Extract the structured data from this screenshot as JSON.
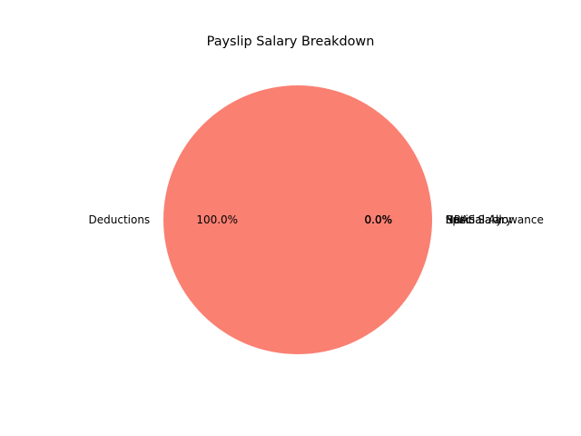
{
  "chart_data": {
    "type": "pie",
    "title": "Payslip Salary Breakdown",
    "slices": [
      {
        "label": "Basic Salary",
        "value": 0,
        "pct_label": "0.0%",
        "color": "#87ceeb"
      },
      {
        "label": "HRA",
        "value": 0,
        "pct_label": "0.0%",
        "color": "#90ee90"
      },
      {
        "label": "Special Allowance",
        "value": 0,
        "pct_label": "0.0%",
        "color": "#ffa500"
      },
      {
        "label": "Net Salary",
        "value": 0,
        "pct_label": "0.0%",
        "color": "#9370db"
      },
      {
        "label": "Deductions",
        "value": 100,
        "pct_label": "100.0%",
        "color": "#fa8072"
      }
    ],
    "start_angle_deg": 0,
    "direction": "counterclockwise"
  }
}
